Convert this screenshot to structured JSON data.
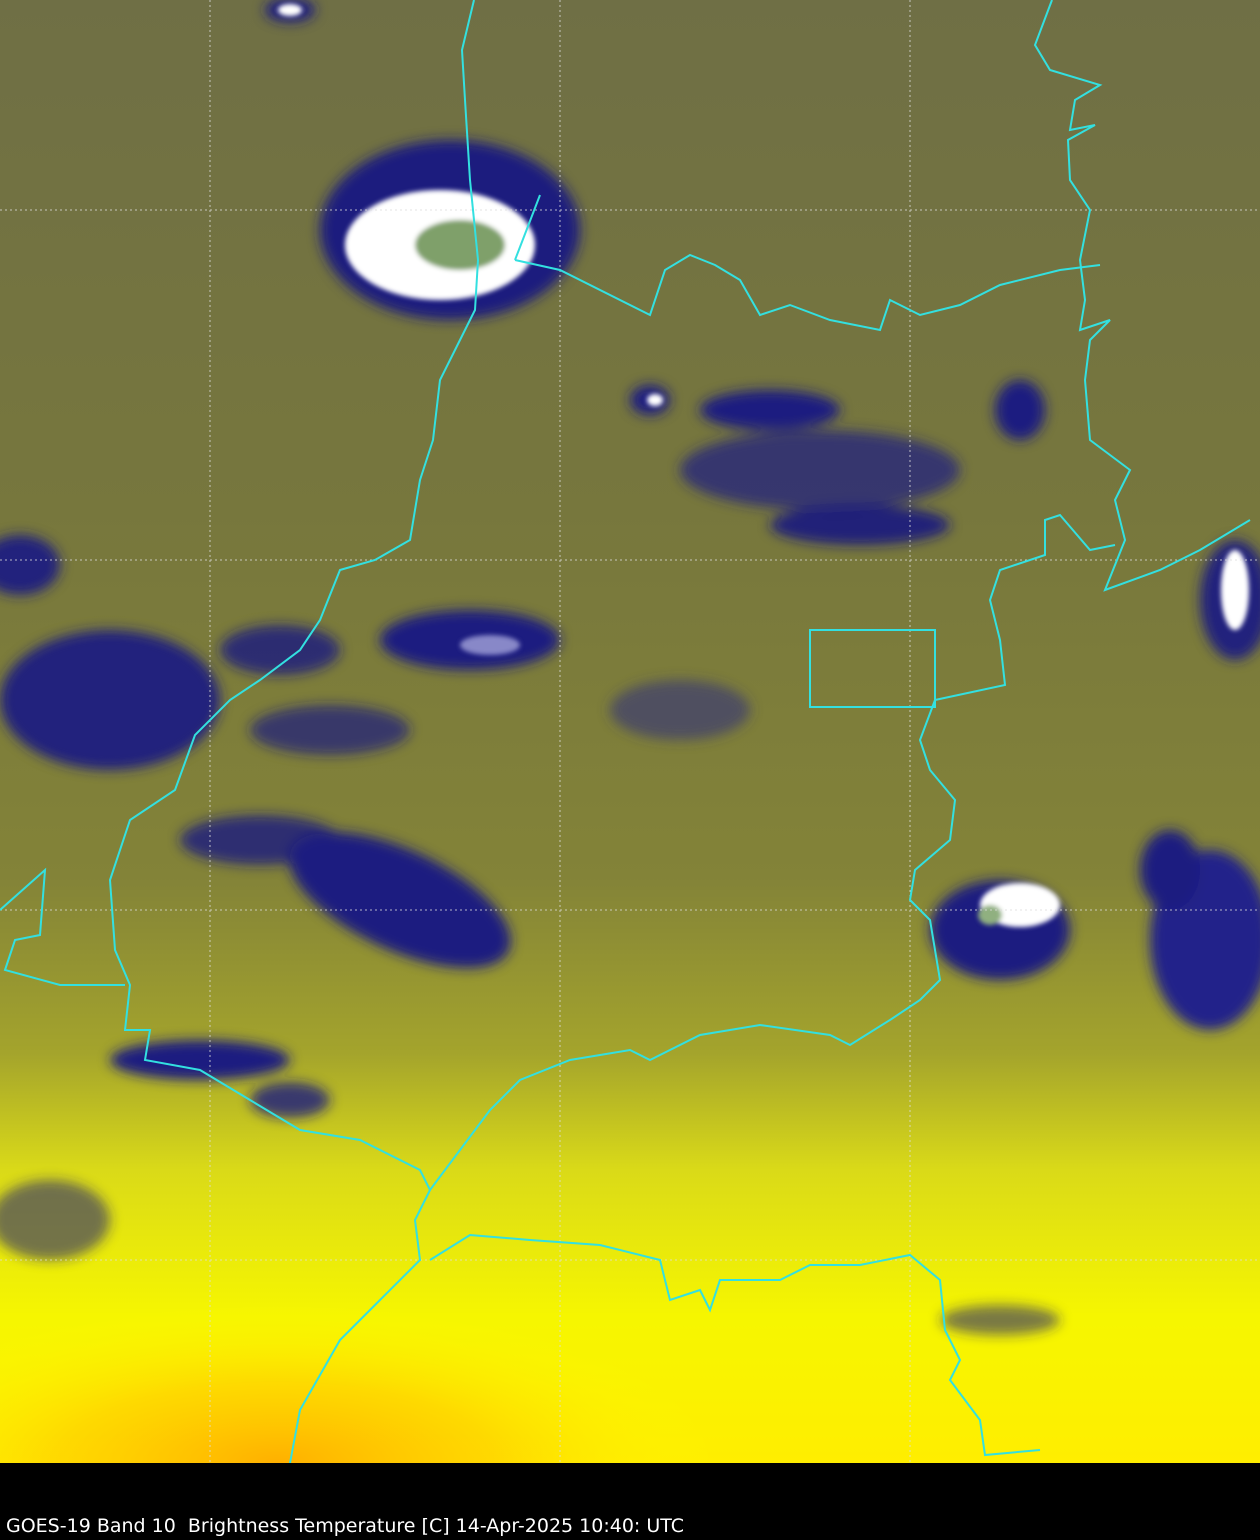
{
  "caption": "GOES-19 Band 10  Brightness Temperature [C] 14-Apr-2025 10:40: UTC",
  "colors": {
    "warm_background": "#7a7a3c",
    "surface_warm": "#ffff00",
    "surface_hot": "#ffb400",
    "cloud_cold": "#1a1a80",
    "cloud_coldest": "#ffffff",
    "borders": "#33e0e0",
    "grid": "#dddddd"
  },
  "grid": {
    "style": "dotted",
    "visible": true
  }
}
